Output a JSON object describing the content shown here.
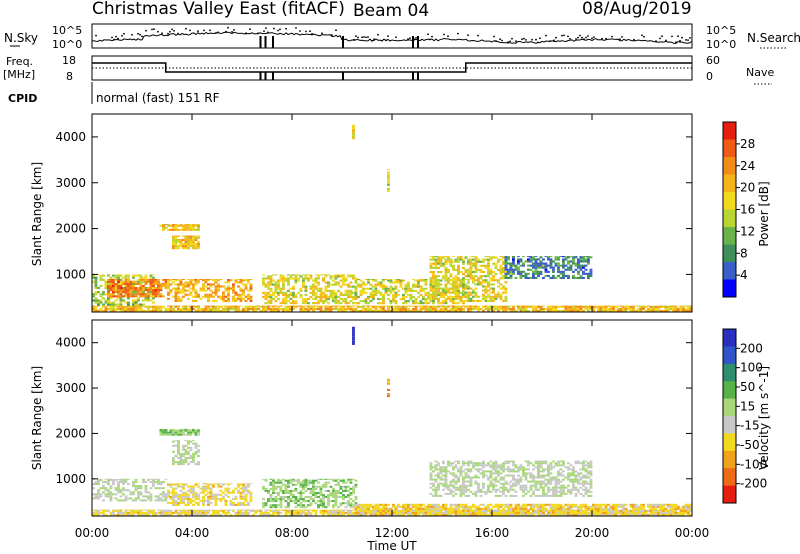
{
  "header": {
    "title": "Christmas Valley East (fitACF)",
    "beam": "Beam 04",
    "date": "08/Aug/2019",
    "cpid_label": "CPID",
    "cpid_value": "normal (fast) 151 RF"
  },
  "top_panels": {
    "nsky_label": "N.Sky",
    "nsearch_label": "N.Search",
    "noise_ticks": [
      "10^5",
      "10^0"
    ],
    "freq_label": "Freq.",
    "freq_unit": "[MHz]",
    "freq_ticks": [
      "18",
      "8"
    ],
    "nave_label": "Nave",
    "nave_ticks": [
      "60",
      "0"
    ]
  },
  "axes": {
    "ylabel": "Slant Range [km]",
    "xlabel": "Time UT",
    "y_ticks": [
      "1000",
      "2000",
      "3000",
      "4000"
    ],
    "x_ticks": [
      "00:00",
      "04:00",
      "08:00",
      "12:00",
      "16:00",
      "20:00",
      "00:00"
    ]
  },
  "colorbars": {
    "power": {
      "label": "Power [dB]",
      "ticks": [
        "4",
        "8",
        "12",
        "16",
        "20",
        "24",
        "28"
      ],
      "colors": [
        "#0000ff",
        "#3a5fc8",
        "#3f8f5a",
        "#6ab24a",
        "#b8d532",
        "#f2d81e",
        "#f5b41a",
        "#f28c16",
        "#ef5a14",
        "#e61e10"
      ]
    },
    "velocity": {
      "label": "Velocity [m s^-1]",
      "ticks": [
        "200",
        "100",
        "50",
        "15",
        "-15",
        "-50",
        "-100",
        "-200"
      ],
      "colors": [
        "#2a2fc0",
        "#2f55c8",
        "#2e8f6e",
        "#58b24a",
        "#a8d87a",
        "#c8c8c8",
        "#f2d81e",
        "#f0a21a",
        "#ef6a14",
        "#e61e10"
      ]
    }
  },
  "chart_data": [
    {
      "type": "heatmap",
      "title": "Power",
      "xlabel": "Time UT",
      "ylabel": "Slant Range [km]",
      "xlim": [
        "00:00",
        "24:00"
      ],
      "ylim": [
        180,
        4500
      ],
      "colorbar_label": "Power [dB]",
      "colorbar_range": [
        0,
        32
      ],
      "regions": [
        {
          "t0": 0.0,
          "t1": 24.0,
          "r0": 180,
          "r1": 320,
          "value": 20
        },
        {
          "t0": 0.0,
          "t1": 2.5,
          "r0": 320,
          "r1": 1000,
          "value": 14
        },
        {
          "t0": 0.6,
          "t1": 3.0,
          "r0": 500,
          "r1": 900,
          "value": 24
        },
        {
          "t0": 2.7,
          "t1": 4.3,
          "r0": 1950,
          "r1": 2100,
          "value": 18
        },
        {
          "t0": 3.2,
          "t1": 4.3,
          "r0": 1550,
          "r1": 1850,
          "value": 19
        },
        {
          "t0": 3.0,
          "t1": 6.3,
          "r0": 400,
          "r1": 900,
          "value": 21
        },
        {
          "t0": 6.8,
          "t1": 10.5,
          "r0": 350,
          "r1": 1000,
          "value": 17
        },
        {
          "t0": 10.5,
          "t1": 15.0,
          "r0": 350,
          "r1": 900,
          "value": 16
        },
        {
          "t0": 13.5,
          "t1": 16.5,
          "r0": 400,
          "r1": 1400,
          "value": 17
        },
        {
          "t0": 16.5,
          "t1": 20.0,
          "r0": 900,
          "r1": 1400,
          "value": 8
        },
        {
          "t0": 10.4,
          "t1": 10.5,
          "r0": 3950,
          "r1": 4350,
          "value": 16
        },
        {
          "t0": 11.8,
          "t1": 11.9,
          "r0": 2800,
          "r1": 3300,
          "value": 16
        }
      ]
    },
    {
      "type": "heatmap",
      "title": "Velocity",
      "xlabel": "Time UT",
      "ylabel": "Slant Range [km]",
      "xlim": [
        "00:00",
        "24:00"
      ],
      "ylim": [
        180,
        4500
      ],
      "colorbar_label": "Velocity [m s^-1]",
      "colorbar_range": [
        -200,
        200
      ],
      "regions": [
        {
          "t0": 0.0,
          "t1": 24.0,
          "r0": 180,
          "r1": 320,
          "value": -50
        },
        {
          "t0": 0.0,
          "t1": 3.0,
          "r0": 500,
          "r1": 1000,
          "value": 0
        },
        {
          "t0": 2.7,
          "t1": 4.3,
          "r0": 1950,
          "r1": 2100,
          "value": 30
        },
        {
          "t0": 3.2,
          "t1": 4.3,
          "r0": 1300,
          "r1": 1850,
          "value": 0
        },
        {
          "t0": 3.0,
          "t1": 6.3,
          "r0": 400,
          "r1": 900,
          "value": -50
        },
        {
          "t0": 6.8,
          "t1": 10.5,
          "r0": 350,
          "r1": 1000,
          "value": 30
        },
        {
          "t0": 10.5,
          "t1": 24.0,
          "r0": 180,
          "r1": 450,
          "value": -60
        },
        {
          "t0": 13.5,
          "t1": 20.0,
          "r0": 600,
          "r1": 1400,
          "value": 0
        },
        {
          "t0": 10.4,
          "t1": 10.5,
          "r0": 3950,
          "r1": 4350,
          "value": 200
        },
        {
          "t0": 11.8,
          "t1": 11.9,
          "r0": 2800,
          "r1": 3300,
          "value": -100
        }
      ]
    }
  ]
}
